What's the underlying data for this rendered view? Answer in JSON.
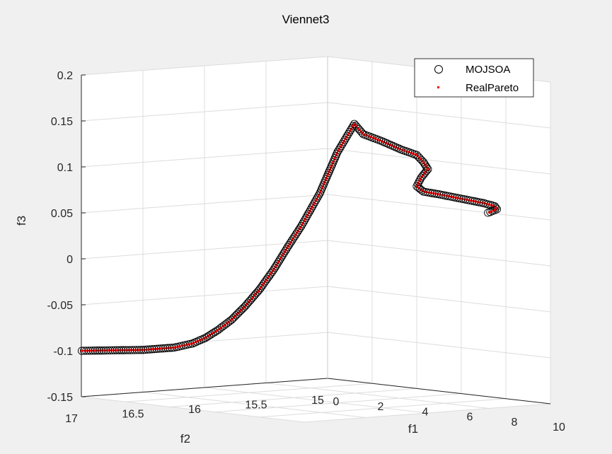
{
  "chart_data": {
    "type": "scatter3d",
    "title": "Viennet3",
    "xlabel": "f1",
    "ylabel": "f2",
    "zlabel": "f3",
    "xlim": [
      0,
      10
    ],
    "ylim": [
      15,
      17
    ],
    "zlim": [
      -0.15,
      0.2
    ],
    "xticks": [
      "0",
      "2",
      "4",
      "6",
      "8",
      "10"
    ],
    "yticks": [
      "15",
      "15.5",
      "16",
      "16.5",
      "17"
    ],
    "zticks": [
      "-0.15",
      "-0.1",
      "-0.05",
      "0",
      "0.05",
      "0.1",
      "0.15",
      "0.2"
    ],
    "grid": true,
    "legend_position": "top-right",
    "series": [
      {
        "name": "MOJSOA",
        "marker": "o",
        "color": "#000000"
      },
      {
        "name": "RealPareto",
        "marker": ".",
        "color": "#ff0000"
      }
    ],
    "points": [
      [
        0.02,
        17.0,
        -0.1
      ],
      [
        0.02,
        16.75,
        -0.102
      ],
      [
        0.02,
        16.5,
        -0.104
      ],
      [
        0.02,
        16.25,
        -0.104
      ],
      [
        0.02,
        16.1,
        -0.101
      ],
      [
        0.04,
        16.0,
        -0.096
      ],
      [
        0.07,
        15.9,
        -0.088
      ],
      [
        0.11,
        15.8,
        -0.078
      ],
      [
        0.17,
        15.7,
        -0.064
      ],
      [
        0.25,
        15.6,
        -0.047
      ],
      [
        0.34,
        15.5,
        -0.026
      ],
      [
        0.42,
        15.4,
        -0.002
      ],
      [
        0.48,
        15.3,
        0.02
      ],
      [
        0.75,
        15.2,
        0.055
      ],
      [
        1.0,
        15.1,
        0.1
      ],
      [
        1.2,
        15.0,
        0.13
      ],
      [
        1.6,
        15.0,
        0.12
      ],
      [
        2.4,
        15.0,
        0.115
      ],
      [
        3.3,
        15.0,
        0.108
      ],
      [
        4.0,
        15.0,
        0.104
      ],
      [
        4.3,
        15.0,
        0.097
      ],
      [
        4.5,
        15.0,
        0.09
      ],
      [
        4.2,
        15.0,
        0.08
      ],
      [
        4.0,
        15.0,
        0.07
      ],
      [
        4.3,
        15.0,
        0.065
      ],
      [
        5.0,
        15.0,
        0.064
      ],
      [
        6.0,
        15.0,
        0.062
      ],
      [
        7.0,
        15.0,
        0.06
      ],
      [
        7.5,
        15.0,
        0.058
      ],
      [
        7.6,
        15.0,
        0.055
      ],
      [
        7.2,
        15.0,
        0.05
      ]
    ]
  }
}
